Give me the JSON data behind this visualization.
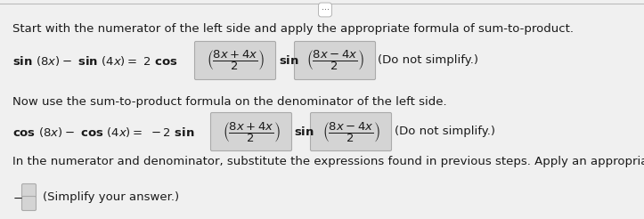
{
  "bg_color": "#f0f0f0",
  "text_color": "#1a1a1a",
  "box_bg": "#d4d4d4",
  "box_edge": "#aaaaaa",
  "title_text": "Start with the numerator of the left side and apply the appropriate formula of sum-to-product.",
  "middle_text": "Now use the sum-to-product formula on the denominator of the left side.",
  "bottom_text": "In the numerator and denominator, substitute the expressions found in previous steps. Apply an appropriate identity to simplify the expressions.",
  "last_right": "(Simplify your answer.)",
  "fig_width": 7.23,
  "fig_height": 2.46,
  "dpi": 100
}
